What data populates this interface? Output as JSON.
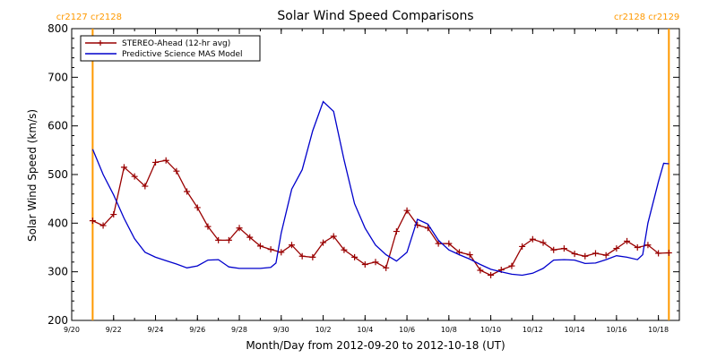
{
  "chart_data": {
    "type": "line",
    "title": "Solar Wind Speed Comparisons",
    "xlabel": "Month/Day from 2012-09-20 to 2012-10-18 (UT)",
    "ylabel": "Solar Wind Speed (km/s)",
    "xlim": [
      "2012-09-20",
      "2012-10-19"
    ],
    "ylim": [
      200,
      800
    ],
    "yticks": [
      200,
      300,
      400,
      500,
      600,
      700,
      800
    ],
    "xticks": [
      {
        "date": "2012-09-20",
        "label": "9/20"
      },
      {
        "date": "2012-09-22",
        "label": "9/22"
      },
      {
        "date": "2012-09-24",
        "label": "9/24"
      },
      {
        "date": "2012-09-26",
        "label": "9/26"
      },
      {
        "date": "2012-09-28",
        "label": "9/28"
      },
      {
        "date": "2012-09-30",
        "label": "9/30"
      },
      {
        "date": "2012-10-02",
        "label": "10/2"
      },
      {
        "date": "2012-10-04",
        "label": "10/4"
      },
      {
        "date": "2012-10-06",
        "label": "10/6"
      },
      {
        "date": "2012-10-08",
        "label": "10/8"
      },
      {
        "date": "2012-10-10",
        "label": "10/10"
      },
      {
        "date": "2012-10-12",
        "label": "10/12"
      },
      {
        "date": "2012-10-14",
        "label": "10/14"
      },
      {
        "date": "2012-10-16",
        "label": "10/16"
      },
      {
        "date": "2012-10-18",
        "label": "10/18"
      }
    ],
    "carrington_markers": [
      {
        "date": "2012-09-21 00:00",
        "left_label": "cr2127",
        "right_label": "cr2128",
        "color": "#FF9900",
        "label_position": "top-left"
      },
      {
        "date": "2012-10-18 12:00",
        "left_label": "cr2128",
        "right_label": "cr2129",
        "color": "#FF9900",
        "label_position": "top-right"
      }
    ],
    "legend": {
      "position": "top-left"
    },
    "series": [
      {
        "name": "STEREO-Ahead (12-hr avg)",
        "color": "#990000",
        "markers": "plus",
        "points": [
          [
            "2012-09-21 00:00",
            405
          ],
          [
            "2012-09-21 12:00",
            395
          ],
          [
            "2012-09-22 00:00",
            418
          ],
          [
            "2012-09-22 12:00",
            515
          ],
          [
            "2012-09-23 00:00",
            496
          ],
          [
            "2012-09-23 12:00",
            476
          ],
          [
            "2012-09-24 00:00",
            525
          ],
          [
            "2012-09-24 12:00",
            529
          ],
          [
            "2012-09-25 00:00",
            507
          ],
          [
            "2012-09-25 12:00",
            465
          ],
          [
            "2012-09-26 00:00",
            432
          ],
          [
            "2012-09-26 12:00",
            393
          ],
          [
            "2012-09-27 00:00",
            365
          ],
          [
            "2012-09-27 12:00",
            365
          ],
          [
            "2012-09-28 00:00",
            390
          ],
          [
            "2012-09-28 12:00",
            371
          ],
          [
            "2012-09-29 00:00",
            353
          ],
          [
            "2012-09-29 12:00",
            346
          ],
          [
            "2012-09-30 00:00",
            340
          ],
          [
            "2012-09-30 12:00",
            355
          ],
          [
            "2012-10-01 00:00",
            332
          ],
          [
            "2012-10-01 12:00",
            330
          ],
          [
            "2012-10-02 00:00",
            360
          ],
          [
            "2012-10-02 12:00",
            373
          ],
          [
            "2012-10-03 00:00",
            345
          ],
          [
            "2012-10-03 12:00",
            330
          ],
          [
            "2012-10-04 00:00",
            315
          ],
          [
            "2012-10-04 12:00",
            320
          ],
          [
            "2012-10-05 00:00",
            308
          ],
          [
            "2012-10-05 12:00",
            383
          ],
          [
            "2012-10-06 00:00",
            426
          ],
          [
            "2012-10-06 12:00",
            396
          ],
          [
            "2012-10-07 00:00",
            390
          ],
          [
            "2012-10-07 12:00",
            358
          ],
          [
            "2012-10-08 00:00",
            358
          ],
          [
            "2012-10-08 12:00",
            340
          ],
          [
            "2012-10-09 00:00",
            335
          ],
          [
            "2012-10-09 12:00",
            303
          ],
          [
            "2012-10-10 00:00",
            293
          ],
          [
            "2012-10-10 12:00",
            304
          ],
          [
            "2012-10-11 00:00",
            312
          ],
          [
            "2012-10-11 12:00",
            352
          ],
          [
            "2012-10-12 00:00",
            367
          ],
          [
            "2012-10-12 12:00",
            360
          ],
          [
            "2012-10-13 00:00",
            345
          ],
          [
            "2012-10-13 12:00",
            348
          ],
          [
            "2012-10-14 00:00",
            337
          ],
          [
            "2012-10-14 12:00",
            332
          ],
          [
            "2012-10-15 00:00",
            338
          ],
          [
            "2012-10-15 12:00",
            334
          ],
          [
            "2012-10-16 00:00",
            348
          ],
          [
            "2012-10-16 12:00",
            363
          ],
          [
            "2012-10-17 00:00",
            350
          ],
          [
            "2012-10-17 12:00",
            355
          ],
          [
            "2012-10-18 00:00",
            338
          ],
          [
            "2012-10-18 12:00",
            339
          ]
        ]
      },
      {
        "name": "Predictive Science MAS Model",
        "color": "#0000CC",
        "markers": "none",
        "points": [
          [
            "2012-09-21 00:00",
            552
          ],
          [
            "2012-09-21 12:00",
            500
          ],
          [
            "2012-09-22 00:00",
            458
          ],
          [
            "2012-09-22 12:00",
            410
          ],
          [
            "2012-09-23 00:00",
            368
          ],
          [
            "2012-09-23 12:00",
            340
          ],
          [
            "2012-09-24 00:00",
            330
          ],
          [
            "2012-09-24 12:00",
            323
          ],
          [
            "2012-09-25 00:00",
            316
          ],
          [
            "2012-09-25 12:00",
            308
          ],
          [
            "2012-09-26 00:00",
            312
          ],
          [
            "2012-09-26 12:00",
            324
          ],
          [
            "2012-09-27 00:00",
            325
          ],
          [
            "2012-09-27 12:00",
            310
          ],
          [
            "2012-09-28 00:00",
            307
          ],
          [
            "2012-09-28 12:00",
            307
          ],
          [
            "2012-09-29 00:00",
            307
          ],
          [
            "2012-09-29 12:00",
            309
          ],
          [
            "2012-09-29 18:00",
            318
          ],
          [
            "2012-09-30 00:00",
            380
          ],
          [
            "2012-09-30 12:00",
            470
          ],
          [
            "2012-10-01 00:00",
            510
          ],
          [
            "2012-10-01 12:00",
            590
          ],
          [
            "2012-10-02 00:00",
            650
          ],
          [
            "2012-10-02 12:00",
            630
          ],
          [
            "2012-10-03 00:00",
            530
          ],
          [
            "2012-10-03 12:00",
            440
          ],
          [
            "2012-10-04 00:00",
            390
          ],
          [
            "2012-10-04 12:00",
            355
          ],
          [
            "2012-10-05 00:00",
            335
          ],
          [
            "2012-10-05 12:00",
            322
          ],
          [
            "2012-10-06 00:00",
            340
          ],
          [
            "2012-10-06 12:00",
            408
          ],
          [
            "2012-10-07 00:00",
            398
          ],
          [
            "2012-10-07 12:00",
            365
          ],
          [
            "2012-10-08 00:00",
            345
          ],
          [
            "2012-10-08 12:00",
            335
          ],
          [
            "2012-10-09 00:00",
            326
          ],
          [
            "2012-10-09 12:00",
            315
          ],
          [
            "2012-10-10 00:00",
            305
          ],
          [
            "2012-10-10 12:00",
            300
          ],
          [
            "2012-10-11 00:00",
            295
          ],
          [
            "2012-10-11 12:00",
            293
          ],
          [
            "2012-10-12 00:00",
            297
          ],
          [
            "2012-10-12 12:00",
            307
          ],
          [
            "2012-10-13 00:00",
            324
          ],
          [
            "2012-10-13 12:00",
            325
          ],
          [
            "2012-10-14 00:00",
            324
          ],
          [
            "2012-10-14 12:00",
            317
          ],
          [
            "2012-10-15 00:00",
            318
          ],
          [
            "2012-10-15 12:00",
            325
          ],
          [
            "2012-10-16 00:00",
            333
          ],
          [
            "2012-10-16 12:00",
            330
          ],
          [
            "2012-10-17 00:00",
            325
          ],
          [
            "2012-10-17 06:00",
            335
          ],
          [
            "2012-10-17 12:00",
            400
          ],
          [
            "2012-10-18 00:00",
            485
          ],
          [
            "2012-10-18 06:00",
            523
          ],
          [
            "2012-10-18 12:00",
            522
          ]
        ]
      }
    ]
  }
}
